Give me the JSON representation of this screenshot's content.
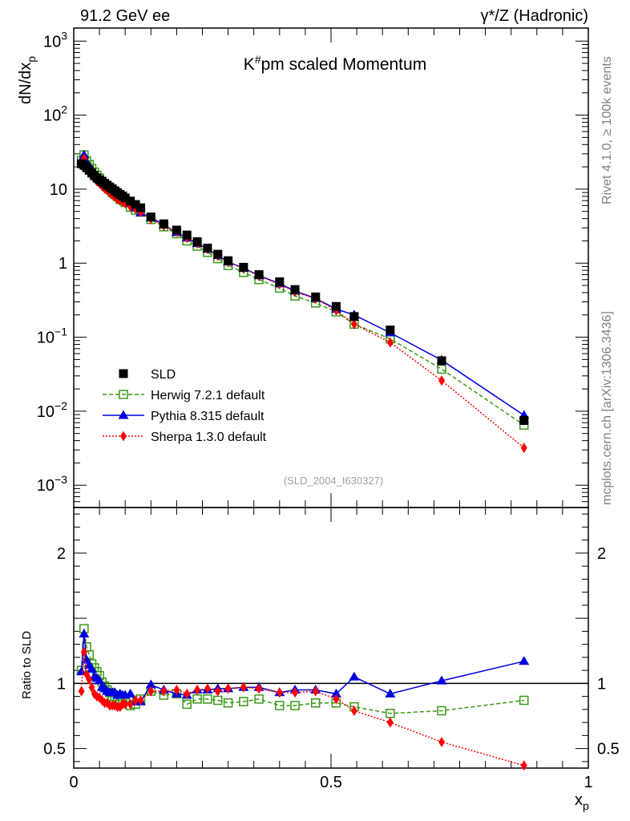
{
  "header": {
    "left": "91.2 GeV ee",
    "right": "γ*/Z (Hadronic)"
  },
  "side": {
    "rivet": "Rivet 4.1.0, ≥ 100k events",
    "mcplots": "mcplots.cern.ch [arXiv:1306.3436]"
  },
  "chart_data": {
    "type": "scatter",
    "title": "K#pm scaled Momentum",
    "analysis_id": "(SLD_2004_I630327)",
    "xlabel": "x_p",
    "ylabel": "dN/dx_p",
    "ratio_ylabel": "Ratio to SLD",
    "xlim": [
      0,
      1
    ],
    "ylim": [
      0.0005,
      1500
    ],
    "ratio_ylim": [
      0.35,
      2.35
    ],
    "x_ticks": [
      "0",
      "0.5",
      "1"
    ],
    "y_ticks": [
      "10⁻³",
      "10⁻²",
      "10⁻¹",
      "1",
      "10",
      "10²",
      "10³"
    ],
    "ratio_ticks": [
      "0.5",
      "1",
      "2"
    ],
    "x": [
      0.015,
      0.02,
      0.025,
      0.03,
      0.035,
      0.04,
      0.045,
      0.05,
      0.055,
      0.06,
      0.065,
      0.07,
      0.075,
      0.08,
      0.085,
      0.09,
      0.095,
      0.1,
      0.11,
      0.12,
      0.13,
      0.15,
      0.175,
      0.2,
      0.22,
      0.24,
      0.26,
      0.28,
      0.3,
      0.33,
      0.36,
      0.4,
      0.43,
      0.47,
      0.51,
      0.545,
      0.615,
      0.715,
      0.875
    ],
    "series": [
      {
        "name": "SLD",
        "color": "#000000",
        "marker": "filled-square",
        "values": [
          22.0,
          21.0,
          19.5,
          18.0,
          16.5,
          15.2,
          14.2,
          13.4,
          12.7,
          12.0,
          11.3,
          10.7,
          10.1,
          9.5,
          9.0,
          8.5,
          8.1,
          7.6,
          6.9,
          6.2,
          5.6,
          4.2,
          3.4,
          2.8,
          2.4,
          1.95,
          1.6,
          1.32,
          1.08,
          0.88,
          0.7,
          0.56,
          0.44,
          0.35,
          0.26,
          0.19,
          0.125,
          0.048,
          0.0075
        ]
      },
      {
        "name": "Herwig 7.2.1 default",
        "color": "#3a9a17",
        "marker": "open-square",
        "line": "dashed",
        "values": [
          24.5,
          29.0,
          24.0,
          21.5,
          19.0,
          17.0,
          15.4,
          14.1,
          12.8,
          11.8,
          10.7,
          9.9,
          9.0,
          8.5,
          7.9,
          7.3,
          7.1,
          6.6,
          5.7,
          5.2,
          4.9,
          3.9,
          3.1,
          2.5,
          2.0,
          1.7,
          1.4,
          1.15,
          0.93,
          0.75,
          0.6,
          0.46,
          0.36,
          0.29,
          0.22,
          0.15,
          0.095,
          0.037,
          0.0065
        ]
      },
      {
        "name": "Pythia 8.315 default",
        "color": "#0000e0",
        "marker": "triangle",
        "line": "solid",
        "values": [
          24.0,
          29.0,
          23.0,
          20.5,
          18.3,
          16.0,
          14.8,
          13.7,
          12.3,
          11.5,
          10.6,
          9.9,
          9.4,
          8.8,
          8.2,
          7.8,
          7.4,
          6.9,
          6.4,
          5.6,
          4.8,
          4.15,
          3.3,
          2.6,
          2.2,
          1.85,
          1.55,
          1.27,
          1.04,
          0.86,
          0.68,
          0.53,
          0.42,
          0.335,
          0.24,
          0.2,
          0.115,
          0.049,
          0.0088
        ]
      },
      {
        "name": "Sherpa 1.3.0 default",
        "color": "#ff0000",
        "marker": "diamond",
        "line": "dotted",
        "values": [
          21.0,
          26.0,
          21.0,
          18.5,
          16.0,
          14.0,
          12.8,
          11.9,
          11.0,
          10.2,
          9.6,
          8.9,
          8.4,
          7.9,
          7.4,
          7.0,
          6.8,
          6.4,
          5.8,
          5.4,
          4.9,
          3.95,
          3.2,
          2.65,
          2.2,
          1.85,
          1.55,
          1.25,
          1.03,
          0.85,
          0.67,
          0.52,
          0.41,
          0.33,
          0.23,
          0.15,
          0.085,
          0.026,
          0.0032
        ]
      }
    ],
    "ratios": [
      {
        "name": "Herwig 7.2.1 default",
        "values": [
          1.1,
          1.42,
          1.28,
          1.22,
          1.15,
          1.12,
          1.09,
          1.06,
          1.01,
          0.98,
          0.95,
          0.93,
          0.9,
          0.9,
          0.88,
          0.87,
          0.88,
          0.87,
          0.83,
          0.84,
          0.88,
          0.94,
          0.91,
          0.92,
          0.84,
          0.88,
          0.88,
          0.87,
          0.85,
          0.86,
          0.88,
          0.83,
          0.83,
          0.85,
          0.85,
          0.82,
          0.77,
          0.79,
          0.87
        ]
      },
      {
        "name": "Pythia 8.315 default",
        "values": [
          1.09,
          1.38,
          1.18,
          1.14,
          1.11,
          1.05,
          1.04,
          1.02,
          0.97,
          0.96,
          0.94,
          0.93,
          0.93,
          0.93,
          0.91,
          0.92,
          0.91,
          0.91,
          0.92,
          0.86,
          0.86,
          0.99,
          0.95,
          0.92,
          0.91,
          0.95,
          0.95,
          0.96,
          0.96,
          0.97,
          0.97,
          0.93,
          0.95,
          0.95,
          0.92,
          1.05,
          0.92,
          1.02,
          1.17
        ]
      },
      {
        "name": "Sherpa 1.3.0 default",
        "values": [
          0.94,
          1.24,
          1.07,
          1.03,
          0.97,
          0.92,
          0.9,
          0.89,
          0.87,
          0.85,
          0.85,
          0.83,
          0.83,
          0.83,
          0.82,
          0.82,
          0.84,
          0.84,
          0.84,
          0.87,
          0.87,
          0.94,
          0.94,
          0.95,
          0.92,
          0.95,
          0.96,
          0.94,
          0.96,
          0.97,
          0.96,
          0.93,
          0.93,
          0.94,
          0.88,
          0.79,
          0.7,
          0.55,
          0.37
        ]
      }
    ]
  }
}
